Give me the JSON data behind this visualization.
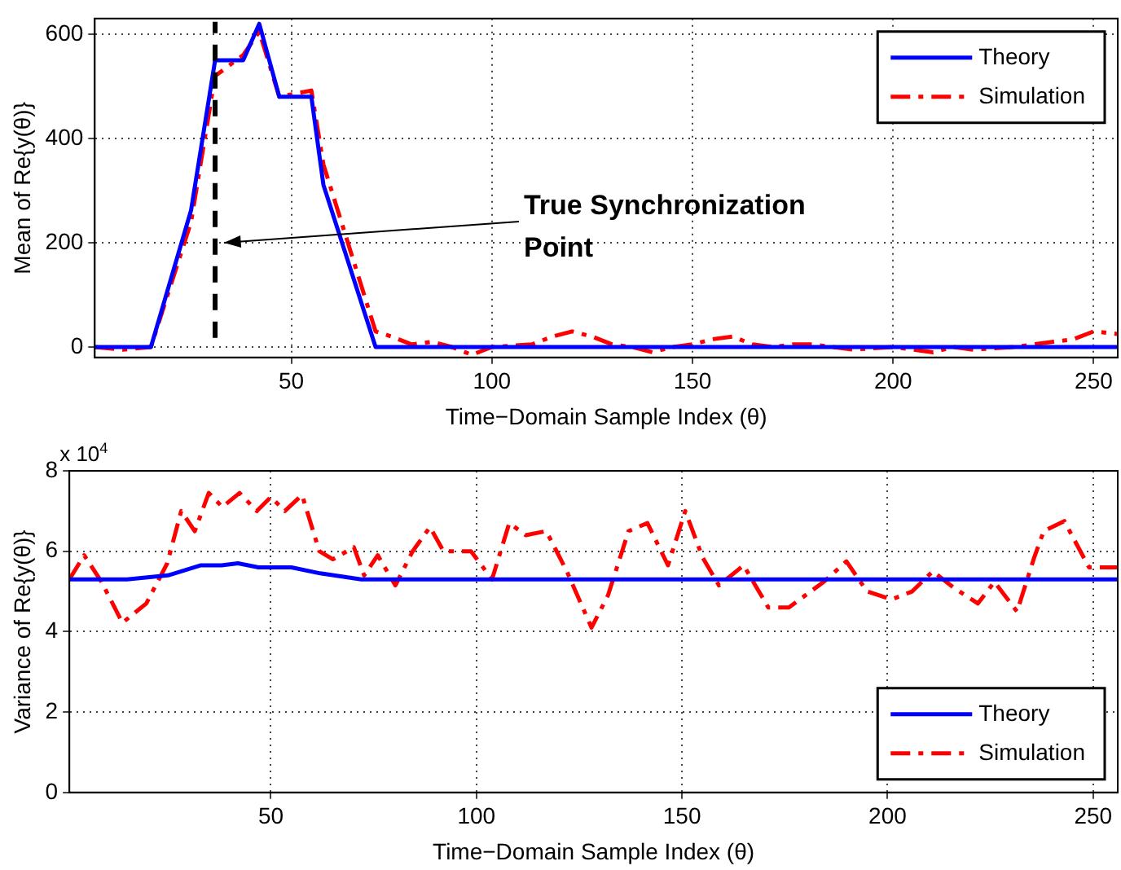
{
  "chart_data": [
    {
      "type": "line",
      "xlabel": "Time−Domain Sample Index (θ)",
      "ylabel": "Mean of Re{y(θ)}",
      "xlim": [
        1,
        256
      ],
      "xticks": [
        50,
        100,
        150,
        200,
        250
      ],
      "ylim": [
        -20,
        630
      ],
      "yticks": [
        0,
        200,
        400,
        600
      ],
      "grid": true,
      "legend": "top right",
      "marker": "none",
      "series": [
        {
          "name": "Theory",
          "color": "#0000ff",
          "line_style": "solid",
          "x": [
            1,
            15,
            25,
            31,
            38,
            42,
            47,
            55,
            58,
            71,
            256
          ],
          "values": [
            0,
            0,
            262,
            550,
            550,
            620,
            480,
            480,
            311,
            0,
            0
          ]
        },
        {
          "name": "Simulation",
          "color": "#ff0000",
          "line_style": "dashed",
          "x": [
            1,
            8,
            15,
            25,
            31,
            38,
            42,
            47,
            55,
            58,
            71,
            75,
            80,
            85,
            90,
            95,
            100,
            110,
            115,
            120,
            125,
            130,
            135,
            140,
            145,
            150,
            155,
            160,
            165,
            170,
            175,
            180,
            185,
            190,
            200,
            205,
            210,
            215,
            220,
            230,
            235,
            240,
            245,
            250,
            256
          ],
          "values": [
            0,
            -5,
            0,
            240,
            520,
            560,
            605,
            480,
            492,
            350,
            30,
            20,
            5,
            10,
            0,
            -15,
            0,
            5,
            20,
            30,
            20,
            5,
            0,
            -10,
            0,
            5,
            15,
            20,
            5,
            0,
            5,
            5,
            0,
            -5,
            0,
            -5,
            -10,
            0,
            -5,
            0,
            5,
            10,
            15,
            30,
            25
          ]
        }
      ],
      "ref_lines": [
        {
          "axis": "x",
          "value": 31,
          "color": "#000000",
          "line_style": "dashed"
        }
      ],
      "annotations": [
        {
          "text": "True Synchronization Point",
          "x": 32,
          "y": 200
        }
      ]
    },
    {
      "type": "line",
      "xlabel": "Time−Domain Sample Index (θ)",
      "ylabel": "Variance of Re{y(θ)}",
      "xlim": [
        1,
        256
      ],
      "xticks": [
        50,
        100,
        150,
        200,
        250
      ],
      "ylim": [
        0,
        8
      ],
      "yticks": [
        0,
        2,
        4,
        6,
        8
      ],
      "grid": true,
      "legend": "bottom right",
      "marker": "none",
      "series": [
        {
          "name": "Theory",
          "color": "#0000ff",
          "line_style": "solid",
          "x": [
            1,
            15,
            25,
            33,
            38,
            42,
            47,
            55,
            62,
            72,
            256
          ],
          "values": [
            5.3,
            5.3,
            5.4,
            5.65,
            5.65,
            5.7,
            5.6,
            5.6,
            5.45,
            5.3,
            5.3
          ]
        },
        {
          "name": "Simulation",
          "color": "#ff0000",
          "line_style": "dashed",
          "x": [
            1,
            4.6,
            8.8,
            13.9,
            19.7,
            24.8,
            28.2,
            31.5,
            34.9,
            38.2,
            42.4,
            46.6,
            50,
            53.4,
            57.6,
            61.8,
            65.1,
            70.2,
            72.7,
            76,
            80.3,
            84.5,
            88.7,
            92,
            98.7,
            103.8,
            108,
            112,
            117,
            122,
            128,
            132,
            137,
            141.6,
            146.6,
            150.8,
            155,
            159,
            165,
            171,
            176,
            184.5,
            190,
            195,
            201,
            206,
            211,
            216,
            222,
            226,
            231.5,
            235.7,
            238,
            243,
            249,
            256
          ],
          "values": [
            5.3,
            5.9,
            5.24,
            4.22,
            4.7,
            5.7,
            7.0,
            6.5,
            7.45,
            7.1,
            7.45,
            7.0,
            7.35,
            7.0,
            7.4,
            6.0,
            5.8,
            6.1,
            5.4,
            5.9,
            5.15,
            6.0,
            6.6,
            6.0,
            6.0,
            5.3,
            6.7,
            6.4,
            6.5,
            5.5,
            4.1,
            4.9,
            6.5,
            6.7,
            5.65,
            7.0,
            5.85,
            5.15,
            5.65,
            4.6,
            4.6,
            5.24,
            5.75,
            5.0,
            4.8,
            5.0,
            5.5,
            5.1,
            4.7,
            5.24,
            4.5,
            5.85,
            6.5,
            6.75,
            5.6,
            5.6
          ]
        }
      ],
      "annotations": [
        "x 10$^{4}$"
      ]
    }
  ]
}
